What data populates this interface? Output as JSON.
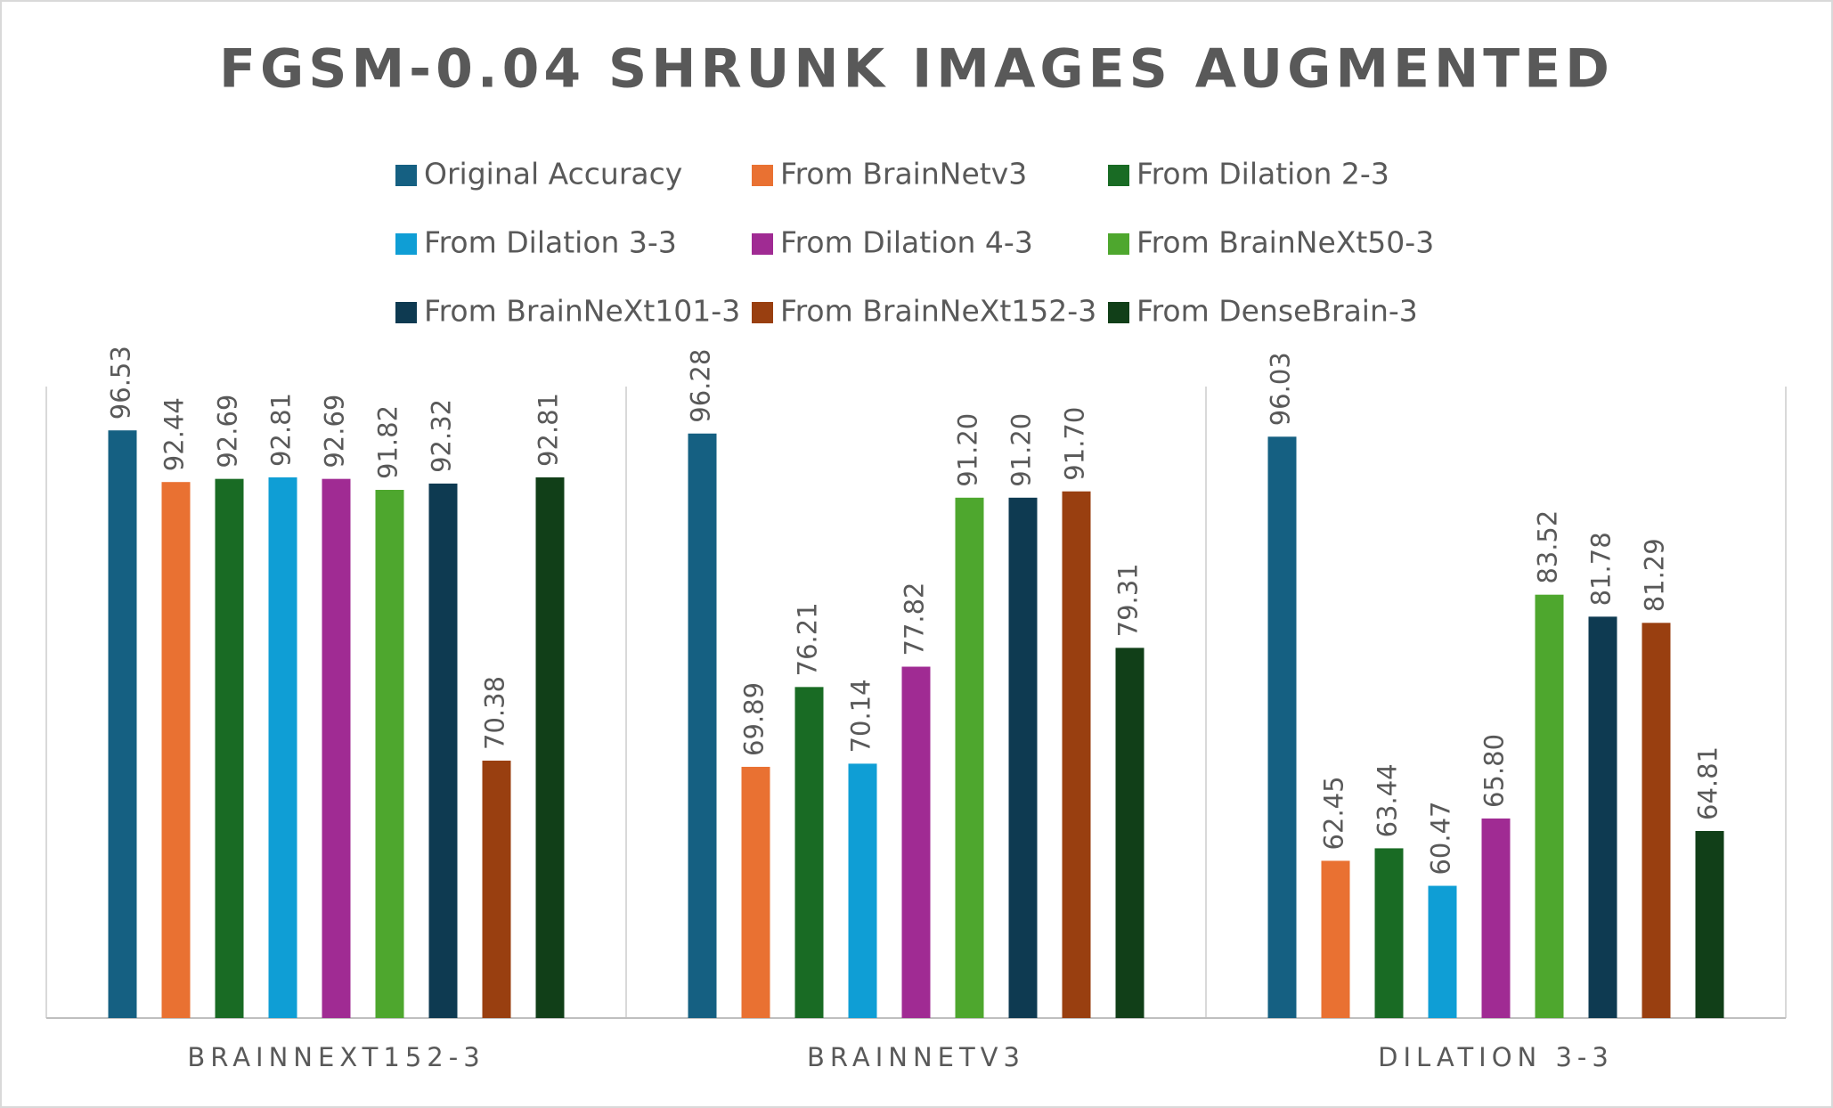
{
  "chart_data": {
    "type": "bar",
    "title": "FGSM-0.04 SHRUNK IMAGES AUGMENTED",
    "categories": [
      "BRAINNEXT152-3",
      "BRAINNETV3",
      "DILATION 3-3"
    ],
    "ylim": [
      50,
      100
    ],
    "legend": "top",
    "series": [
      {
        "name": "Original Accuracy",
        "color": "#156082",
        "values": [
          96.53,
          96.28,
          96.03
        ],
        "value_labels": [
          "96.53",
          "96.28",
          "96.03"
        ]
      },
      {
        "name": "From BrainNetv3",
        "color": "#e97132",
        "values": [
          92.44,
          69.89,
          62.45
        ],
        "value_labels": [
          "92.44",
          "69.89",
          "62.45"
        ]
      },
      {
        "name": "From Dilation 2-3",
        "color": "#196b24",
        "values": [
          92.69,
          76.21,
          63.44
        ],
        "value_labels": [
          "92.69",
          "76.21",
          "63.44"
        ]
      },
      {
        "name": "From Dilation 3-3",
        "color": "#0f9ed5",
        "values": [
          92.81,
          70.14,
          60.47
        ],
        "value_labels": [
          "92.81",
          "70.14",
          "60.47"
        ]
      },
      {
        "name": "From Dilation 4-3",
        "color": "#a02b93",
        "values": [
          92.69,
          77.82,
          65.8
        ],
        "value_labels": [
          "92.69",
          "77.82",
          "65.80"
        ]
      },
      {
        "name": "From BrainNeXt50-3",
        "color": "#4ea72e",
        "values": [
          91.82,
          91.2,
          83.52
        ],
        "value_labels": [
          "91.82",
          "91.20",
          "83.52"
        ]
      },
      {
        "name": "From BrainNeXt101-3",
        "color": "#0e3a51",
        "values": [
          92.32,
          91.2,
          81.78
        ],
        "value_labels": [
          "92.32",
          "91.20",
          "81.78"
        ]
      },
      {
        "name": "From BrainNeXt152-3",
        "color": "#993f10",
        "values": [
          70.38,
          91.7,
          81.29
        ],
        "value_labels": [
          "70.38",
          "91.70",
          "81.29"
        ]
      },
      {
        "name": "From DenseBrain-3",
        "color": "#113f18",
        "values": [
          92.81,
          79.31,
          64.81
        ],
        "value_labels": [
          "92.81",
          "79.31",
          "64.81"
        ]
      }
    ]
  }
}
